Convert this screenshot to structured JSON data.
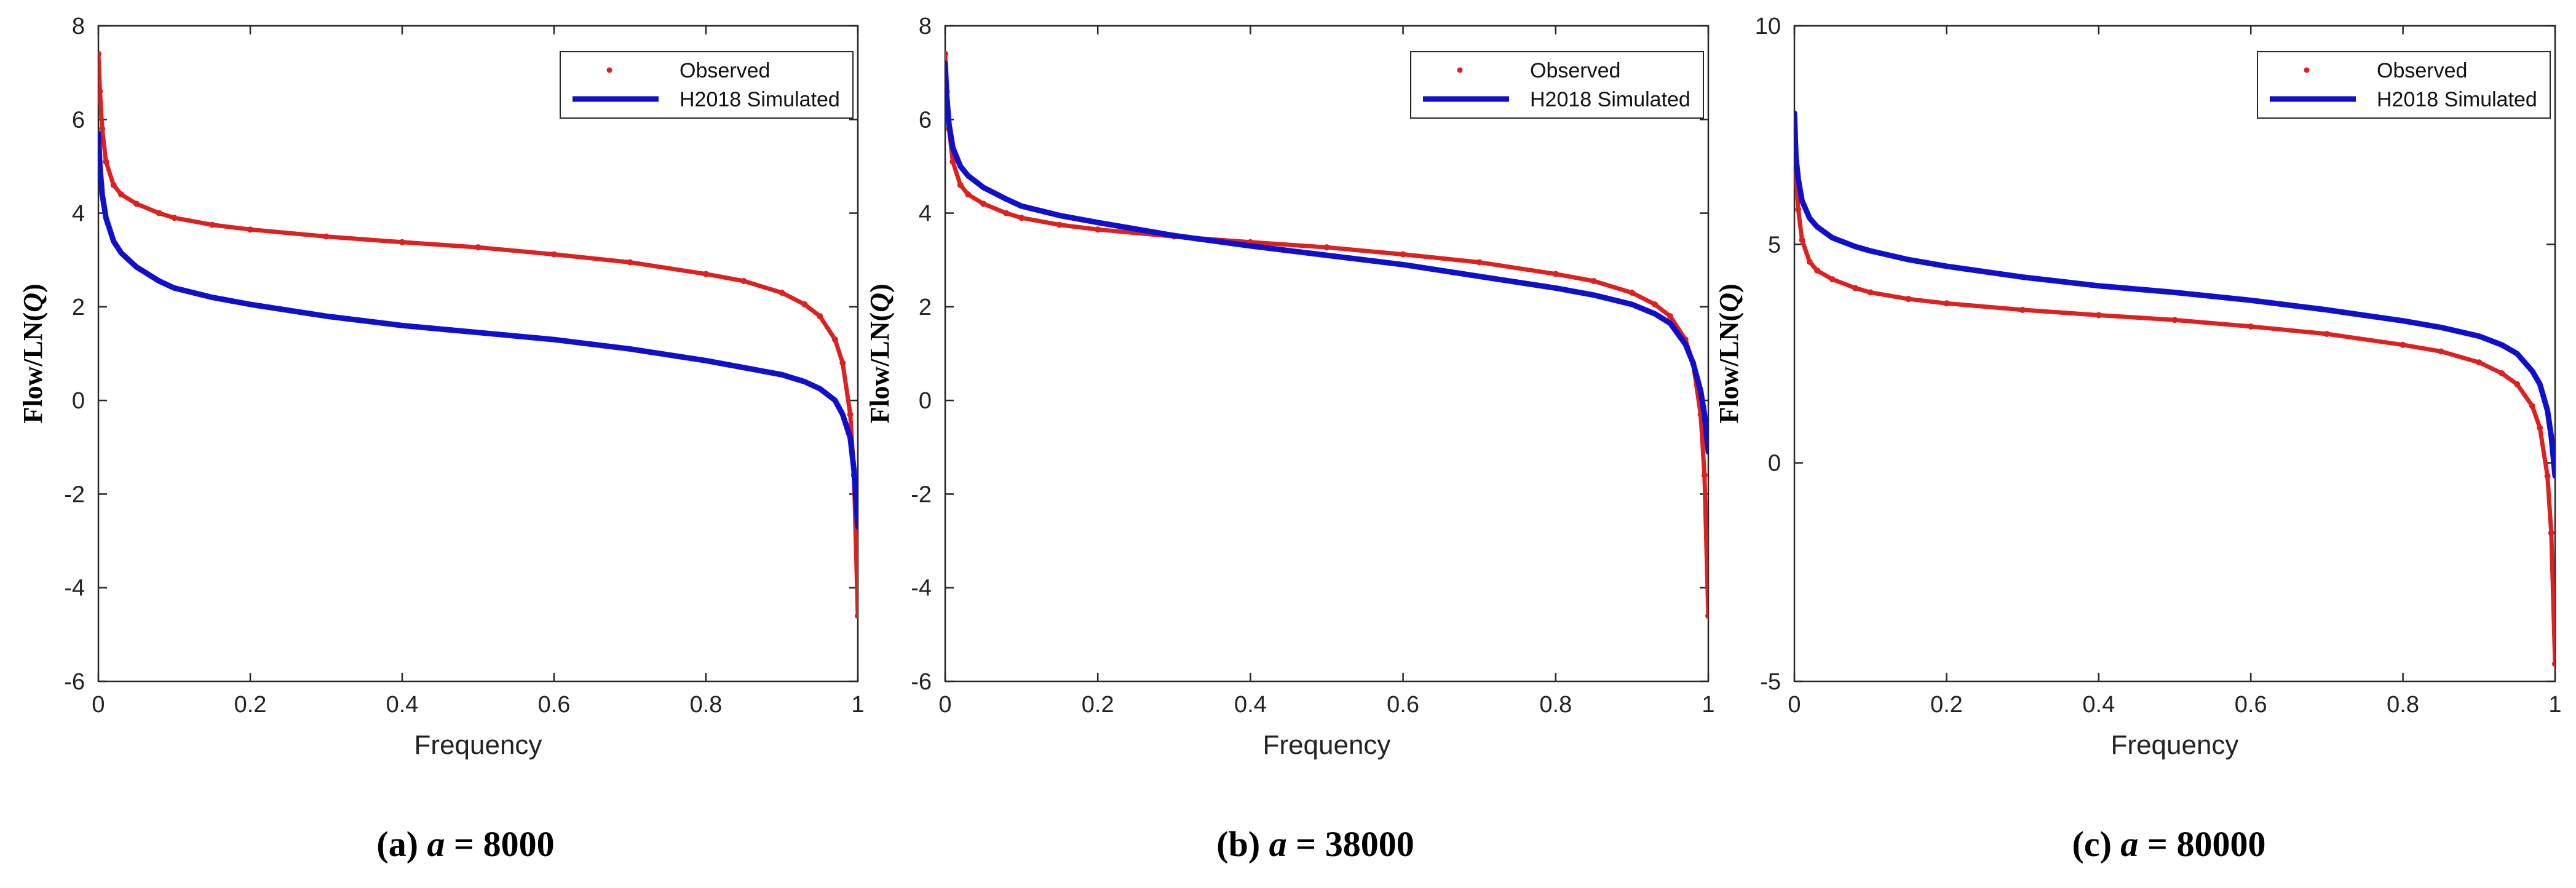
{
  "colors": {
    "observed": "#dd2020",
    "simulated": "#1010cc",
    "axis": "#262626"
  },
  "chart_data": [
    {
      "type": "line",
      "panel": "a",
      "caption": {
        "prefix": "(a) ",
        "var": "a",
        "rest": " = 8000"
      },
      "title": "",
      "xlabel": "Frequency",
      "ylabel": {
        "pre": "Flow/LN(",
        "var": "Q",
        "post": ")"
      },
      "xlim": [
        0,
        1
      ],
      "ylim": [
        -6,
        8
      ],
      "xticks": [
        0,
        0.2,
        0.4,
        0.6,
        0.8,
        1
      ],
      "xtick_labels": [
        "0",
        "0.2",
        "0.4",
        "0.6",
        "0.8",
        "1"
      ],
      "yticks": [
        -6,
        -4,
        -2,
        0,
        2,
        4,
        6,
        8
      ],
      "ytick_labels": [
        "-6",
        "-4",
        "-2",
        "0",
        "2",
        "4",
        "6",
        "8"
      ],
      "legend": {
        "position": "top-right",
        "entries": [
          "Observed",
          "H2018 Simulated"
        ]
      },
      "series": [
        {
          "name": "Observed",
          "style": "dots",
          "x": [
            0,
            0.002,
            0.005,
            0.01,
            0.02,
            0.03,
            0.05,
            0.08,
            0.1,
            0.15,
            0.2,
            0.3,
            0.4,
            0.5,
            0.6,
            0.7,
            0.8,
            0.85,
            0.9,
            0.93,
            0.95,
            0.97,
            0.98,
            0.99,
            0.995,
            1.0
          ],
          "y": [
            7.4,
            6.6,
            5.8,
            5.1,
            4.6,
            4.4,
            4.2,
            4.0,
            3.9,
            3.75,
            3.65,
            3.5,
            3.38,
            3.27,
            3.12,
            2.95,
            2.7,
            2.55,
            2.3,
            2.05,
            1.8,
            1.3,
            0.8,
            -0.3,
            -1.6,
            -4.6
          ]
        },
        {
          "name": "H2018 Simulated",
          "style": "line",
          "x": [
            0,
            0.002,
            0.005,
            0.01,
            0.02,
            0.03,
            0.05,
            0.08,
            0.1,
            0.15,
            0.2,
            0.3,
            0.4,
            0.5,
            0.6,
            0.7,
            0.8,
            0.85,
            0.9,
            0.93,
            0.95,
            0.97,
            0.98,
            0.99,
            0.995,
            1.0
          ],
          "y": [
            5.7,
            5.0,
            4.4,
            3.9,
            3.4,
            3.15,
            2.85,
            2.55,
            2.4,
            2.2,
            2.05,
            1.8,
            1.6,
            1.45,
            1.3,
            1.1,
            0.85,
            0.7,
            0.55,
            0.4,
            0.25,
            0.0,
            -0.3,
            -0.8,
            -1.5,
            -2.7
          ]
        }
      ]
    },
    {
      "type": "line",
      "panel": "b",
      "caption": {
        "prefix": "(b) ",
        "var": "a",
        "rest": " = 38000"
      },
      "title": "",
      "xlabel": "Frequency",
      "ylabel": {
        "pre": "Flow/LN(",
        "var": "Q",
        "post": ")"
      },
      "xlim": [
        0,
        1
      ],
      "ylim": [
        -6,
        8
      ],
      "xticks": [
        0,
        0.2,
        0.4,
        0.6,
        0.8,
        1
      ],
      "xtick_labels": [
        "0",
        "0.2",
        "0.4",
        "0.6",
        "0.8",
        "1"
      ],
      "yticks": [
        -6,
        -4,
        -2,
        0,
        2,
        4,
        6,
        8
      ],
      "ytick_labels": [
        "-6",
        "-4",
        "-2",
        "0",
        "2",
        "4",
        "6",
        "8"
      ],
      "legend": {
        "position": "top-right",
        "entries": [
          "Observed",
          "H2018 Simulated"
        ]
      },
      "series": [
        {
          "name": "Observed",
          "style": "dots",
          "x": [
            0,
            0.002,
            0.005,
            0.01,
            0.02,
            0.03,
            0.05,
            0.08,
            0.1,
            0.15,
            0.2,
            0.3,
            0.4,
            0.5,
            0.6,
            0.7,
            0.8,
            0.85,
            0.9,
            0.93,
            0.95,
            0.97,
            0.98,
            0.99,
            0.995,
            1.0
          ],
          "y": [
            7.4,
            6.6,
            5.8,
            5.1,
            4.6,
            4.4,
            4.2,
            4.0,
            3.9,
            3.75,
            3.65,
            3.5,
            3.38,
            3.27,
            3.12,
            2.95,
            2.7,
            2.55,
            2.3,
            2.05,
            1.8,
            1.3,
            0.8,
            -0.3,
            -1.6,
            -4.6
          ]
        },
        {
          "name": "H2018 Simulated",
          "style": "line",
          "x": [
            0,
            0.002,
            0.005,
            0.01,
            0.02,
            0.03,
            0.05,
            0.08,
            0.1,
            0.15,
            0.2,
            0.3,
            0.4,
            0.5,
            0.6,
            0.7,
            0.8,
            0.85,
            0.9,
            0.93,
            0.95,
            0.97,
            0.98,
            0.99,
            0.995,
            1.0
          ],
          "y": [
            7.2,
            6.5,
            5.9,
            5.4,
            5.0,
            4.8,
            4.55,
            4.3,
            4.15,
            3.95,
            3.8,
            3.52,
            3.3,
            3.1,
            2.9,
            2.65,
            2.4,
            2.25,
            2.05,
            1.85,
            1.65,
            1.2,
            0.8,
            0.2,
            -0.3,
            -1.1
          ]
        }
      ]
    },
    {
      "type": "line",
      "panel": "c",
      "caption": {
        "prefix": "(c) ",
        "var": "a",
        "rest": " = 80000"
      },
      "title": "",
      "xlabel": "Frequency",
      "ylabel": {
        "pre": "Flow/LN(",
        "var": "Q",
        "post": ")"
      },
      "xlim": [
        0,
        1
      ],
      "ylim": [
        -5,
        10
      ],
      "xticks": [
        0,
        0.2,
        0.4,
        0.6,
        0.8,
        1
      ],
      "xtick_labels": [
        "0",
        "0.2",
        "0.4",
        "0.6",
        "0.8",
        "1"
      ],
      "yticks": [
        -5,
        0,
        5,
        10
      ],
      "ytick_labels": [
        "-5",
        "0",
        "5",
        "10"
      ],
      "legend": {
        "position": "top-right",
        "entries": [
          "Observed",
          "H2018 Simulated"
        ]
      },
      "series": [
        {
          "name": "Observed",
          "style": "dots",
          "x": [
            0,
            0.002,
            0.005,
            0.01,
            0.02,
            0.03,
            0.05,
            0.08,
            0.1,
            0.15,
            0.2,
            0.3,
            0.4,
            0.5,
            0.6,
            0.7,
            0.8,
            0.85,
            0.9,
            0.93,
            0.95,
            0.97,
            0.98,
            0.99,
            0.995,
            1.0
          ],
          "y": [
            7.4,
            6.6,
            5.8,
            5.1,
            4.6,
            4.4,
            4.2,
            4.0,
            3.9,
            3.75,
            3.65,
            3.5,
            3.38,
            3.27,
            3.12,
            2.95,
            2.7,
            2.55,
            2.3,
            2.05,
            1.8,
            1.3,
            0.8,
            -0.3,
            -1.6,
            -4.6
          ]
        },
        {
          "name": "H2018 Simulated",
          "style": "line",
          "x": [
            0,
            0.002,
            0.005,
            0.01,
            0.02,
            0.03,
            0.05,
            0.08,
            0.1,
            0.15,
            0.2,
            0.3,
            0.4,
            0.5,
            0.6,
            0.7,
            0.8,
            0.85,
            0.9,
            0.93,
            0.95,
            0.97,
            0.98,
            0.99,
            0.995,
            1.0
          ],
          "y": [
            8.0,
            7.0,
            6.5,
            6.0,
            5.6,
            5.4,
            5.15,
            4.95,
            4.85,
            4.65,
            4.5,
            4.25,
            4.05,
            3.9,
            3.72,
            3.5,
            3.25,
            3.1,
            2.9,
            2.7,
            2.5,
            2.1,
            1.8,
            1.2,
            0.6,
            -0.3
          ]
        }
      ]
    }
  ]
}
